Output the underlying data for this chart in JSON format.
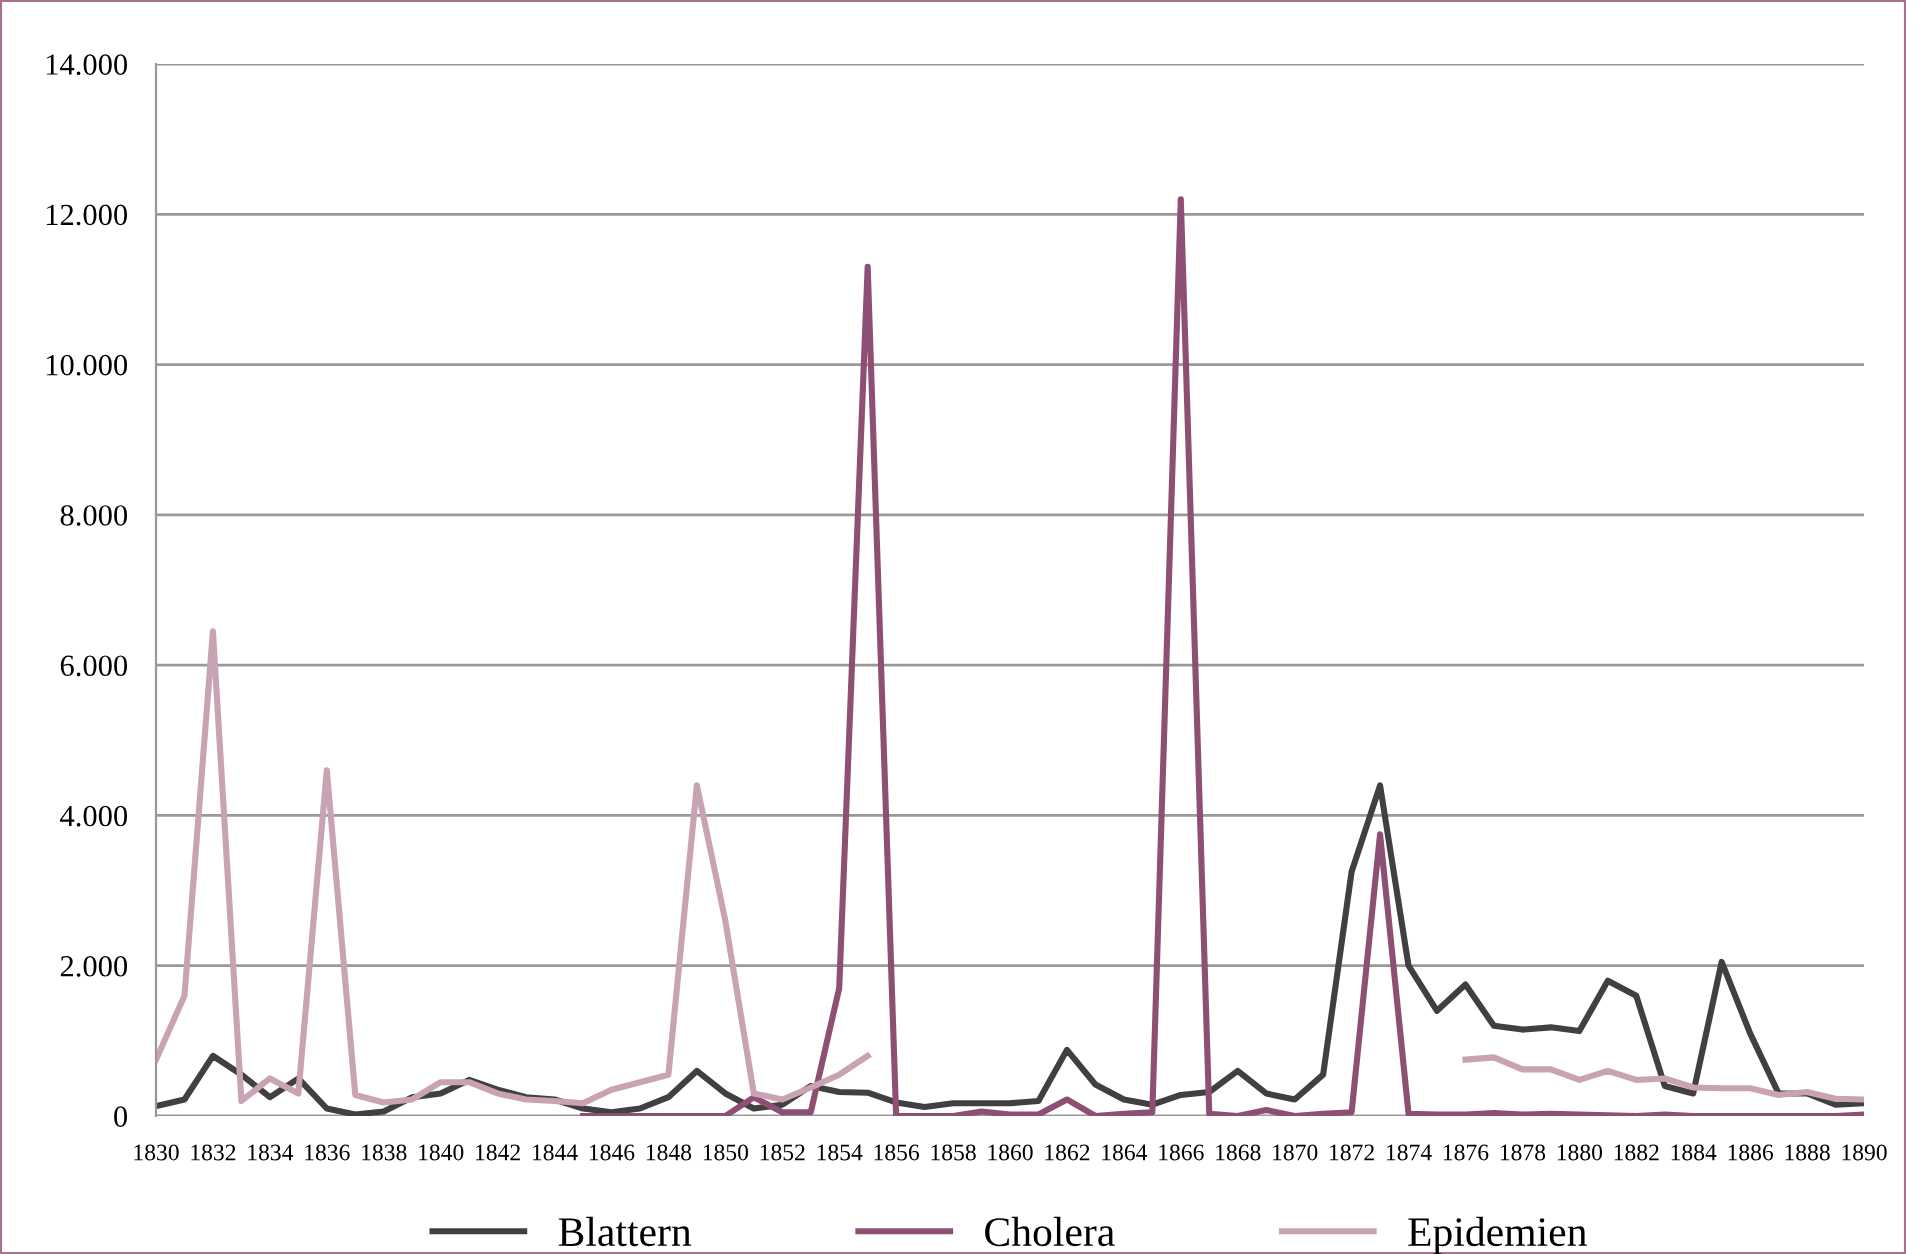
{
  "chart_data": {
    "type": "line",
    "x": [
      1830,
      1831,
      1832,
      1833,
      1834,
      1835,
      1836,
      1837,
      1838,
      1839,
      1840,
      1841,
      1842,
      1843,
      1844,
      1845,
      1846,
      1847,
      1848,
      1849,
      1850,
      1851,
      1852,
      1853,
      1854,
      1855,
      1856,
      1857,
      1858,
      1859,
      1860,
      1861,
      1862,
      1863,
      1864,
      1865,
      1866,
      1867,
      1868,
      1869,
      1870,
      1871,
      1872,
      1873,
      1874,
      1875,
      1876,
      1877,
      1878,
      1879,
      1880,
      1881,
      1882,
      1883,
      1884,
      1885,
      1886,
      1887,
      1888,
      1889,
      1890
    ],
    "series": [
      {
        "name": "Blattern",
        "color": "#404040",
        "values": [
          130,
          220,
          800,
          550,
          250,
          500,
          100,
          20,
          60,
          250,
          300,
          480,
          350,
          250,
          220,
          100,
          50,
          100,
          250,
          600,
          300,
          100,
          150,
          400,
          320,
          310,
          180,
          120,
          170,
          170,
          170,
          200,
          880,
          420,
          220,
          150,
          280,
          320,
          600,
          300,
          220,
          550,
          3250,
          4400,
          2000,
          1400,
          1750,
          1200,
          1150,
          1180,
          1130,
          1800,
          1600,
          400,
          300,
          2050,
          1100,
          300,
          300,
          150,
          170
        ]
      },
      {
        "name": "Cholera",
        "color": "#8e4f74",
        "values": [
          null,
          null,
          null,
          null,
          null,
          null,
          null,
          null,
          null,
          null,
          null,
          null,
          null,
          null,
          null,
          0,
          0,
          0,
          0,
          0,
          0,
          250,
          50,
          50,
          1700,
          11300,
          0,
          0,
          0,
          60,
          20,
          20,
          220,
          0,
          30,
          50,
          12200,
          30,
          0,
          80,
          0,
          30,
          50,
          3750,
          30,
          20,
          20,
          40,
          20,
          30,
          20,
          10,
          0,
          20,
          0,
          0,
          0,
          0,
          0,
          0,
          20
        ]
      },
      {
        "name": "Epidemien",
        "color": "#c9a3b4",
        "values": [
          750,
          1600,
          6450,
          200,
          500,
          300,
          4600,
          280,
          180,
          220,
          450,
          450,
          300,
          220,
          200,
          170,
          350,
          450,
          550,
          4400,
          2600,
          300,
          220,
          380,
          550,
          800,
          null,
          null,
          null,
          null,
          null,
          null,
          null,
          null,
          null,
          null,
          null,
          null,
          null,
          null,
          null,
          null,
          null,
          null,
          null,
          null,
          750,
          780,
          620,
          620,
          480,
          600,
          480,
          500,
          380,
          370,
          370,
          280,
          320,
          230,
          220
        ]
      }
    ],
    "xlim": [
      1830,
      1890
    ],
    "xticks": [
      1830,
      1832,
      1834,
      1836,
      1838,
      1840,
      1842,
      1844,
      1846,
      1848,
      1850,
      1852,
      1854,
      1856,
      1858,
      1860,
      1862,
      1864,
      1866,
      1868,
      1870,
      1872,
      1874,
      1876,
      1878,
      1880,
      1882,
      1884,
      1886,
      1888,
      1890
    ],
    "ylim": [
      0,
      14000
    ],
    "yticks": [
      0,
      {
        "value": 2000,
        "label": "2.000"
      },
      {
        "value": 4000,
        "label": "4.000"
      },
      {
        "value": 6000,
        "label": "6.000"
      },
      {
        "value": 8000,
        "label": "8.000"
      },
      {
        "value": 10000,
        "label": "10.000"
      },
      {
        "value": 12000,
        "label": "12.000"
      },
      {
        "value": 14000,
        "label": "14.000"
      }
    ],
    "grid": "y",
    "legend": "bottom",
    "marker": "none",
    "line_style": "solid"
  }
}
